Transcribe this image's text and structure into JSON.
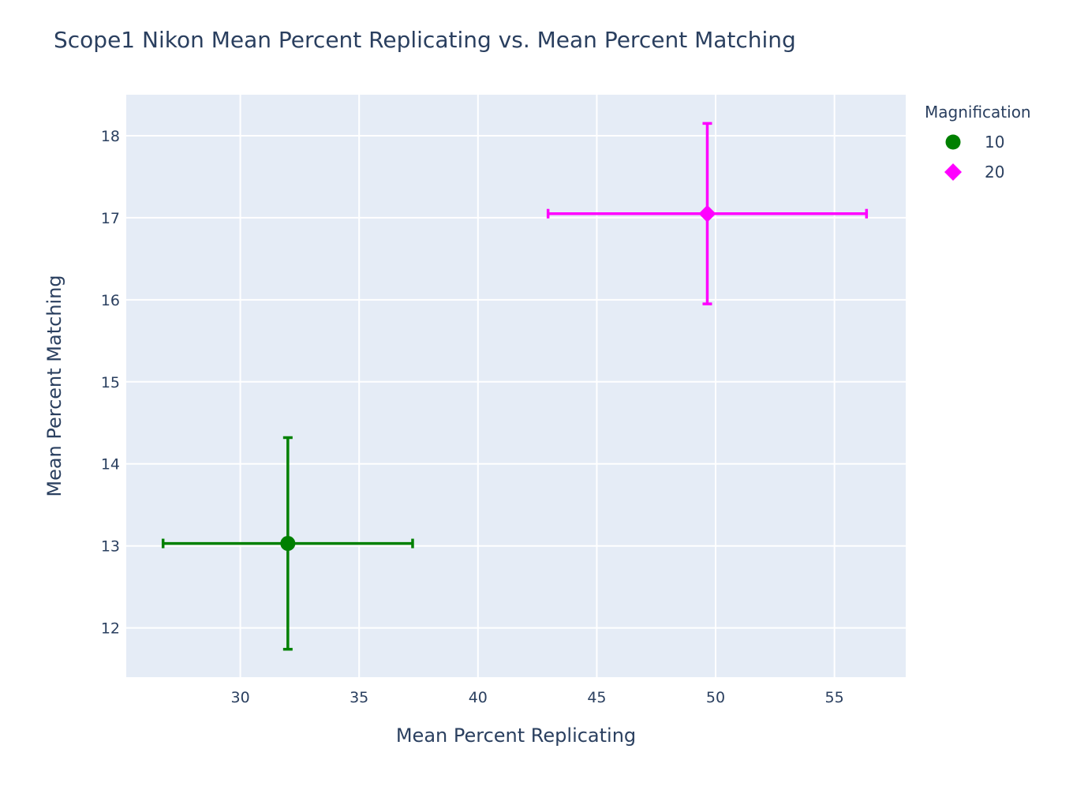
{
  "chart_data": {
    "type": "scatter",
    "title": "Scope1 Nikon Mean Percent Replicating vs. Mean Percent Matching",
    "xlabel": "Mean Percent Replicating",
    "ylabel": "Mean Percent Matching",
    "xlim": [
      25.2,
      58.0
    ],
    "ylim": [
      11.4,
      18.5
    ],
    "x_ticks": [
      30,
      35,
      40,
      45,
      50,
      55
    ],
    "y_ticks": [
      12,
      13,
      14,
      15,
      16,
      17,
      18
    ],
    "grid": true,
    "plot_background": "#e5ecf6",
    "legend": {
      "title": "Magnification",
      "placement": "top-right"
    },
    "series": [
      {
        "name": "10",
        "color": "#008000",
        "marker": "circle",
        "x": [
          32.0
        ],
        "y": [
          13.03
        ],
        "x_error": [
          5.25
        ],
        "y_error": [
          1.29
        ]
      },
      {
        "name": "20",
        "color": "#ff00ff",
        "marker": "diamond",
        "x": [
          49.65
        ],
        "y": [
          17.05
        ],
        "x_error": [
          6.7
        ],
        "y_error": [
          1.1
        ]
      }
    ]
  }
}
